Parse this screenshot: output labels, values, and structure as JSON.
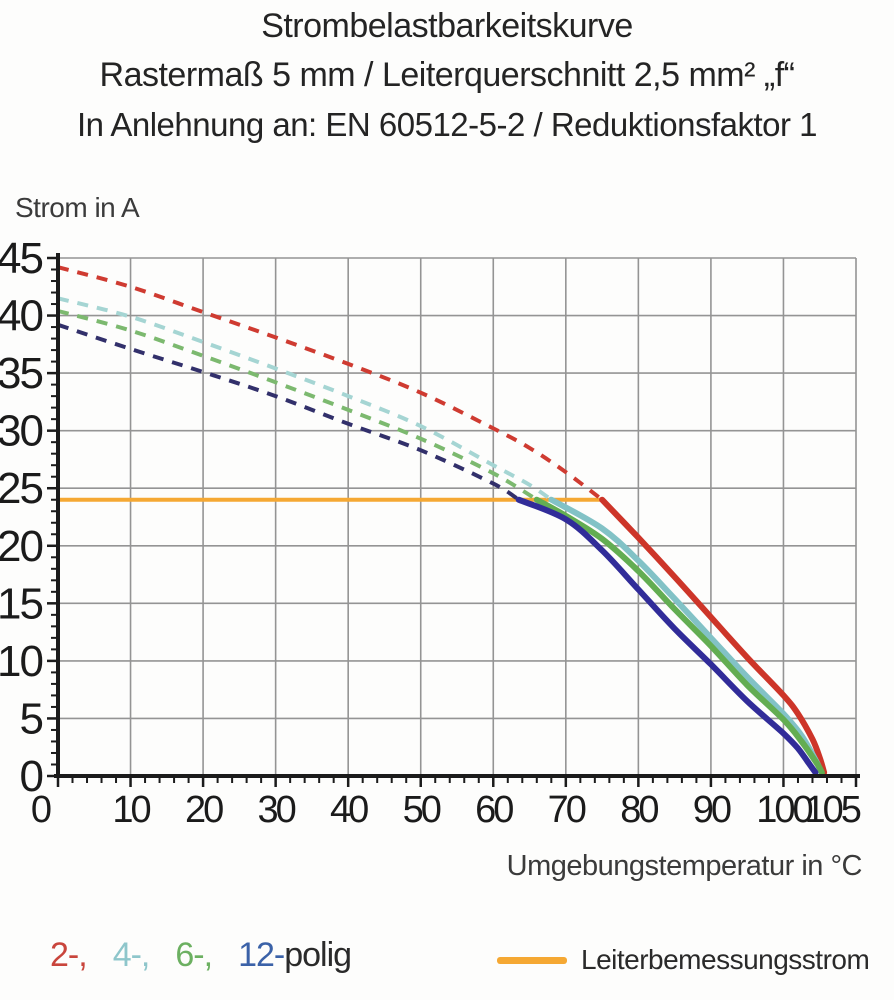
{
  "title": {
    "line1": "Strombelastbarkeitskurve",
    "line2": "Rastermaß 5 mm / Leiterquerschnitt 2,5 mm² „f“",
    "line3": "In Anlehnung an: EN 60512-5-2 / Reduktionsfaktor 1"
  },
  "chart_data": {
    "type": "line",
    "title": "Strombelastbarkeitskurve",
    "xlabel": "Umgebungstemperatur in °C",
    "ylabel": "Strom in A",
    "xlim": [
      0,
      110
    ],
    "ylim": [
      0,
      45
    ],
    "x_major_tick_labels": [
      0,
      10,
      20,
      30,
      40,
      50,
      60,
      70,
      80,
      90,
      100,
      105
    ],
    "x_minor_step": 2,
    "y_major_tick_labels": [
      0,
      5,
      10,
      15,
      20,
      25,
      30,
      35,
      40,
      45
    ],
    "y_minor_step": 1,
    "grid": {
      "on": true,
      "x_step": 10,
      "y_step": 5
    },
    "legend_position": "bottom",
    "rated_current": {
      "label": "Leiterbemessungsstrom",
      "value": 24,
      "x_start": 0,
      "x_end": 75,
      "color": "#f5a833"
    },
    "series": [
      {
        "name": "2-polig",
        "color": "#cd3529",
        "dashed_color": "#cf3b31",
        "dashed": [
          [
            0,
            44.2
          ],
          [
            10,
            42.5
          ],
          [
            20,
            40.3
          ],
          [
            30,
            38.1
          ],
          [
            40,
            35.8
          ],
          [
            50,
            33.3
          ],
          [
            60,
            30.2
          ],
          [
            65,
            28.5
          ],
          [
            70,
            26.4
          ],
          [
            75,
            24
          ]
        ],
        "solid": [
          [
            75,
            24
          ],
          [
            80,
            20.7
          ],
          [
            85,
            17.3
          ],
          [
            90,
            13.8
          ],
          [
            95,
            10.3
          ],
          [
            100,
            7.0
          ],
          [
            102,
            5.4
          ],
          [
            104,
            3.2
          ],
          [
            105,
            1.6
          ],
          [
            105.6,
            0.3
          ]
        ]
      },
      {
        "name": "4-polig",
        "color": "#82c2c6",
        "dashed_color": "#a5d5d3",
        "dashed": [
          [
            0,
            41.5
          ],
          [
            10,
            39.9
          ],
          [
            20,
            37.7
          ],
          [
            30,
            35.4
          ],
          [
            40,
            33.0
          ],
          [
            50,
            30.4
          ],
          [
            60,
            27.0
          ],
          [
            65,
            25.3
          ],
          [
            68,
            24
          ]
        ],
        "solid": [
          [
            68,
            24
          ],
          [
            75,
            21.5
          ],
          [
            80,
            18.7
          ],
          [
            85,
            15.4
          ],
          [
            90,
            12.0
          ],
          [
            95,
            8.6
          ],
          [
            100,
            5.4
          ],
          [
            102.5,
            3.5
          ],
          [
            104.5,
            1.3
          ],
          [
            105.2,
            0.3
          ]
        ]
      },
      {
        "name": "6-polig",
        "color": "#63ad52",
        "dashed_color": "#7cb96f",
        "dashed": [
          [
            0,
            40.4
          ],
          [
            10,
            38.7
          ],
          [
            20,
            36.5
          ],
          [
            30,
            34.2
          ],
          [
            40,
            31.8
          ],
          [
            50,
            29.3
          ],
          [
            60,
            26.3
          ],
          [
            66,
            24
          ]
        ],
        "solid": [
          [
            66,
            24
          ],
          [
            70,
            22.6
          ],
          [
            75,
            20.6
          ],
          [
            80,
            17.8
          ],
          [
            85,
            14.5
          ],
          [
            90,
            11.3
          ],
          [
            95,
            7.9
          ],
          [
            100,
            4.9
          ],
          [
            102.5,
            3.0
          ],
          [
            104.7,
            1.0
          ],
          [
            105.3,
            0.3
          ]
        ]
      },
      {
        "name": "12-polig",
        "color": "#312c99",
        "dashed_color": "#32306b",
        "dashed": [
          [
            0,
            39.2
          ],
          [
            10,
            37.1
          ],
          [
            20,
            35.1
          ],
          [
            30,
            33.0
          ],
          [
            40,
            30.6
          ],
          [
            50,
            28.3
          ],
          [
            60,
            25.4
          ],
          [
            63.5,
            24
          ]
        ],
        "solid": [
          [
            63.5,
            24
          ],
          [
            70,
            22.3
          ],
          [
            75,
            19.6
          ],
          [
            80,
            16.2
          ],
          [
            85,
            12.8
          ],
          [
            90,
            9.7
          ],
          [
            95,
            6.5
          ],
          [
            100,
            3.7
          ],
          [
            102,
            2.4
          ],
          [
            103.5,
            1.1
          ],
          [
            104.4,
            0.3
          ]
        ]
      }
    ]
  },
  "legend": {
    "pole_items": [
      {
        "label": "2-,",
        "color": "#c9453c"
      },
      {
        "label": "4-,",
        "color": "#8ec6cb"
      },
      {
        "label": "6-,",
        "color": "#6cb061"
      },
      {
        "label": "12-",
        "color": "#3b62a8"
      }
    ],
    "suffix": "polig",
    "suffix_color": "#2a2a2a",
    "rated": {
      "label": "Leiterbemessungsstrom",
      "color": "#f5a833"
    }
  },
  "colors": {
    "background": "#fdfdfc",
    "grid": "#949494",
    "axis": "#1b1b1b",
    "tick_text": "#1b1b1b",
    "title_text": "#242424",
    "axis_label_text": "#3b3b3b"
  }
}
